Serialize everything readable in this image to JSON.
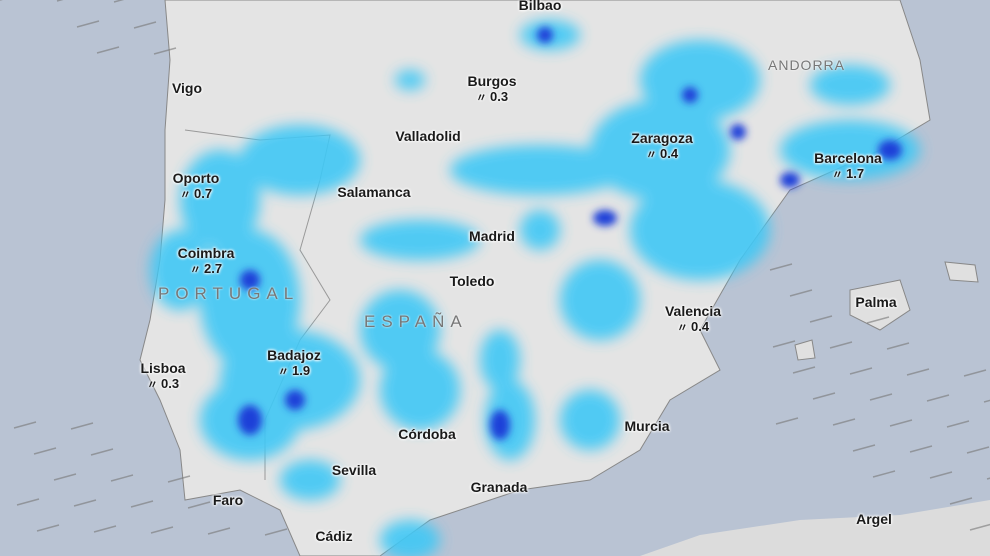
{
  "countries": [
    {
      "name": "PORTUGAL"
    },
    {
      "name": "ESPAÑA"
    },
    {
      "name": "ANDORRA"
    }
  ],
  "cities": [
    {
      "name": "Bilbao",
      "value": null
    },
    {
      "name": "Burgos",
      "value": "0.3"
    },
    {
      "name": "Vigo",
      "value": null
    },
    {
      "name": "Valladolid",
      "value": null
    },
    {
      "name": "Zaragoza",
      "value": "0.4"
    },
    {
      "name": "Barcelona",
      "value": "1.7"
    },
    {
      "name": "Oporto",
      "value": "0.7"
    },
    {
      "name": "Salamanca",
      "value": null
    },
    {
      "name": "Madrid",
      "value": null
    },
    {
      "name": "Coimbra",
      "value": "2.7"
    },
    {
      "name": "Toledo",
      "value": null
    },
    {
      "name": "Palma",
      "value": null
    },
    {
      "name": "Valencia",
      "value": "0.4"
    },
    {
      "name": "Badajoz",
      "value": "1.9"
    },
    {
      "name": "Lisboa",
      "value": "0.3"
    },
    {
      "name": "Murcia",
      "value": null
    },
    {
      "name": "Córdoba",
      "value": null
    },
    {
      "name": "Sevilla",
      "value": null
    },
    {
      "name": "Faro",
      "value": null
    },
    {
      "name": "Granada",
      "value": null
    },
    {
      "name": "Argel",
      "value": null
    },
    {
      "name": "Cádiz",
      "value": null
    }
  ],
  "rain_icon": "rain-icon",
  "colors": {
    "sea": "#b9c3d3",
    "land": "#e6e6e6",
    "rain_light": "#3fc8f5",
    "rain_heavy": "#1a3fd8"
  }
}
